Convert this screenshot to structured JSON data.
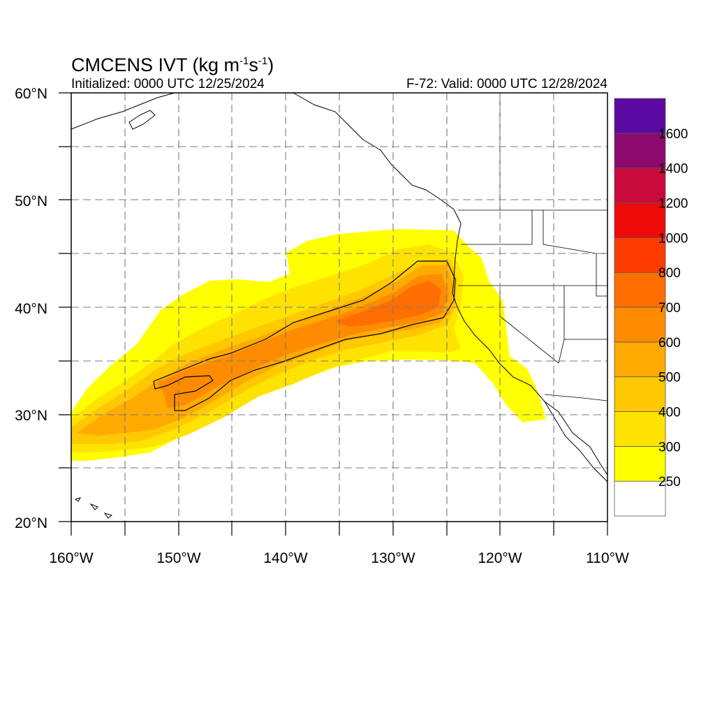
{
  "title": {
    "main": "CMCENS IVT (kg m",
    "sup1": "-1",
    "mid": "s",
    "sup2": "-1",
    "close": ")"
  },
  "initialized": "Initialized: 0000 UTC 12/25/2024",
  "valid": "F-72: Valid: 0000 UTC 12/28/2024",
  "map": {
    "lon_range": [
      -160,
      -110
    ],
    "lat_range": [
      20,
      60
    ],
    "grid": true,
    "lat_labels": [
      "20°N",
      "30°N",
      "40°N",
      "50°N",
      "60°N"
    ],
    "lon_labels": [
      "160°W",
      "150°W",
      "140°W",
      "130°W",
      "120°W",
      "110°W"
    ]
  },
  "colorbar": {
    "labels": [
      "250",
      "300",
      "400",
      "500",
      "600",
      "700",
      "800",
      "1000",
      "1200",
      "1400",
      "1600"
    ],
    "colors": [
      "#ffffff",
      "#ffff00",
      "#ffe300",
      "#ffc800",
      "#ffaa00",
      "#ff8c00",
      "#ff6e00",
      "#ff3c00",
      "#ef0a0a",
      "#c80a3c",
      "#8c0a6e",
      "#5a0aa0"
    ]
  }
}
